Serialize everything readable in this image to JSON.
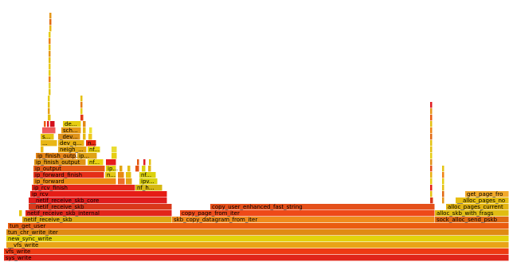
{
  "chart_data": {
    "type": "flamegraph",
    "x_range": [
      0,
      639
    ],
    "frames": [
      {
        "label": "sys_write",
        "x": 5,
        "w": 634,
        "depth": 0,
        "color": "#e0261a"
      },
      {
        "label": "vfs_write",
        "x": 5,
        "w": 634,
        "depth": 1,
        "color": "#ee3a12"
      },
      {
        "label": "__vfs_write",
        "x": 8,
        "w": 631,
        "depth": 2,
        "color": "#e9a417"
      },
      {
        "label": "new_sync_write",
        "x": 8,
        "w": 631,
        "depth": 3,
        "color": "#e3d10c"
      },
      {
        "label": "tun_chr_write_iter",
        "x": 8,
        "w": 631,
        "depth": 4,
        "color": "#e08a14"
      },
      {
        "label": "tun_get_user",
        "x": 10,
        "w": 629,
        "depth": 5,
        "color": "#ea5c10"
      },
      {
        "label": "netif_receive_skb",
        "x": 28,
        "w": 188,
        "depth": 6,
        "color": "#dea713"
      },
      {
        "label": "skb_copy_datagram_from_iter",
        "x": 216,
        "w": 330,
        "depth": 6,
        "color": "#ef8b1c"
      },
      {
        "label": "sock_alloc_send_pskb",
        "x": 546,
        "w": 93,
        "depth": 6,
        "color": "#e06a14"
      },
      {
        "label": "",
        "x": 24,
        "w": 4,
        "depth": 7,
        "color": "#e5c411"
      },
      {
        "label": "netif_receive_skb_internal",
        "x": 32,
        "w": 184,
        "depth": 7,
        "color": "#e2261a"
      },
      {
        "label": "copy_page_from_iter",
        "x": 226,
        "w": 320,
        "depth": 7,
        "color": "#ee4a18"
      },
      {
        "label": "alloc_skb_with_frags",
        "x": 546,
        "w": 93,
        "depth": 7,
        "color": "#e0bc12"
      },
      {
        "label": "__netif_receive_skb",
        "x": 36,
        "w": 180,
        "depth": 8,
        "color": "#d9381a"
      },
      {
        "label": "copy_user_enhanced_fast_string",
        "x": 264,
        "w": 282,
        "depth": 8,
        "color": "#e5501a"
      },
      {
        "label": "alloc_pages_current",
        "x": 560,
        "w": 79,
        "depth": 8,
        "color": "#e2b312"
      },
      {
        "label": "__netif_receive_skb_core",
        "x": 36,
        "w": 174,
        "depth": 9,
        "color": "#e01c1c"
      },
      {
        "label": "__alloc_pages_no",
        "x": 572,
        "w": 67,
        "depth": 9,
        "color": "#e6bd12"
      },
      {
        "label": "ip_rcv",
        "x": 38,
        "w": 172,
        "depth": 10,
        "color": "#e61d16"
      },
      {
        "label": "get_page_fro",
        "x": 584,
        "w": 55,
        "depth": 10,
        "color": "#f2a92a"
      },
      {
        "label": "ip_rcv_finish",
        "x": 40,
        "w": 130,
        "depth": 11,
        "color": "#e5261b"
      },
      {
        "label": "nf_h...",
        "x": 170,
        "w": 34,
        "depth": 11,
        "color": "#d6b813"
      },
      {
        "label": "ip_forward",
        "x": 42,
        "w": 104,
        "depth": 12,
        "color": "#ef8a12"
      },
      {
        "label": "",
        "x": 148,
        "w": 9,
        "depth": 12,
        "color": "#ee6e28"
      },
      {
        "label": "",
        "x": 158,
        "w": 8,
        "depth": 12,
        "color": "#e69c16"
      },
      {
        "label": "ipv...",
        "x": 175,
        "w": 23,
        "depth": 12,
        "color": "#dbd20f"
      },
      {
        "label": "ip_forward_finish",
        "x": 42,
        "w": 89,
        "depth": 13,
        "color": "#e52e18"
      },
      {
        "label": "n...",
        "x": 132,
        "w": 14,
        "depth": 13,
        "color": "#e4c815"
      },
      {
        "label": "",
        "x": 148,
        "w": 8,
        "depth": 13,
        "color": "#e88a14"
      },
      {
        "label": "",
        "x": 158,
        "w": 7,
        "depth": 13,
        "color": "#e5c012"
      },
      {
        "label": "nf...",
        "x": 175,
        "w": 21,
        "depth": 13,
        "color": "#dcd20d"
      },
      {
        "label": "ip_output",
        "x": 42,
        "w": 90,
        "depth": 14,
        "color": "#e55a15"
      },
      {
        "label": "ip...",
        "x": 133,
        "w": 13,
        "depth": 14,
        "color": "#dfd40e"
      },
      {
        "label": "",
        "x": 150,
        "w": 4,
        "depth": 14,
        "color": "#e3a413"
      },
      {
        "label": "",
        "x": 160,
        "w": 4,
        "depth": 14,
        "color": "#e6be14"
      },
      {
        "label": "",
        "x": 170,
        "w": 5,
        "depth": 14,
        "color": "#e55515"
      },
      {
        "label": "",
        "x": 178,
        "w": 5,
        "depth": 14,
        "color": "#dcd20f"
      },
      {
        "label": "",
        "x": 186,
        "w": 4,
        "depth": 14,
        "color": "#e1b512"
      },
      {
        "label": "ip_finish_output",
        "x": 43,
        "w": 65,
        "depth": 15,
        "color": "#e09414"
      },
      {
        "label": "nf...",
        "x": 110,
        "w": 20,
        "depth": 15,
        "color": "#ead30f"
      },
      {
        "label": "",
        "x": 133,
        "w": 13,
        "depth": 15,
        "color": "#e61c1c"
      },
      {
        "label": "",
        "x": 172,
        "w": 3,
        "depth": 15,
        "color": "#e65a14"
      },
      {
        "label": "",
        "x": 180,
        "w": 3,
        "depth": 15,
        "color": "#e01c22"
      },
      {
        "label": "",
        "x": 187,
        "w": 3,
        "depth": 15,
        "color": "#e4c110"
      },
      {
        "label": "ip_finish_outp...",
        "x": 45,
        "w": 51,
        "depth": 16,
        "color": "#e58315"
      },
      {
        "label": "ip...",
        "x": 97,
        "w": 25,
        "depth": 16,
        "color": "#dfa316"
      },
      {
        "label": "",
        "x": 140,
        "w": 7,
        "depth": 16,
        "color": "#e6ce13"
      },
      {
        "label": "",
        "x": 51,
        "w": 4,
        "depth": 17,
        "color": "#e8b816"
      },
      {
        "label": "neigh_...",
        "x": 73,
        "w": 36,
        "depth": 17,
        "color": "#e5a713"
      },
      {
        "label": "nf...",
        "x": 110,
        "w": 16,
        "depth": 17,
        "color": "#ead30f"
      },
      {
        "label": "",
        "x": 140,
        "w": 7,
        "depth": 17,
        "color": "#e9dc33"
      },
      {
        "label": "...",
        "x": 51,
        "w": 21,
        "depth": 18,
        "color": "#e9b616"
      },
      {
        "label": "dev_q...",
        "x": 73,
        "w": 33,
        "depth": 18,
        "color": "#e8b011"
      },
      {
        "label": "n...",
        "x": 108,
        "w": 13,
        "depth": 18,
        "color": "#e6290f"
      },
      {
        "label": "s...",
        "x": 51,
        "w": 17,
        "depth": 19,
        "color": "#e5c212"
      },
      {
        "label": "_dev...",
        "x": 73,
        "w": 28,
        "depth": 19,
        "color": "#e0921a"
      },
      {
        "label": "",
        "x": 104,
        "w": 4,
        "depth": 19,
        "color": "#e6b713"
      },
      {
        "label": "",
        "x": 111,
        "w": 5,
        "depth": 19,
        "color": "#eec71c"
      },
      {
        "label": "",
        "x": 53,
        "w": 17,
        "depth": 20,
        "color": "#f05a5a"
      },
      {
        "label": "sch...",
        "x": 77,
        "w": 25,
        "depth": 20,
        "color": "#e59816"
      },
      {
        "label": "",
        "x": 104,
        "w": 4,
        "depth": 20,
        "color": "#e6b713"
      },
      {
        "label": "",
        "x": 112,
        "w": 4,
        "depth": 20,
        "color": "#eee233"
      },
      {
        "label": "",
        "x": 55,
        "w": 3,
        "depth": 21,
        "color": "#ee5a14"
      },
      {
        "label": "",
        "x": 59,
        "w": 3,
        "depth": 21,
        "color": "#e01c22"
      },
      {
        "label": "",
        "x": 63,
        "w": 6,
        "depth": 21,
        "color": "#d40f1c"
      },
      {
        "label": "de...",
        "x": 79,
        "w": 23,
        "depth": 21,
        "color": "#e6cd11"
      },
      {
        "label": "",
        "x": 104,
        "w": 4,
        "depth": 21,
        "color": "#e38a14"
      },
      {
        "label": "",
        "x": 60,
        "w": 4,
        "depth": 22,
        "color": "#e4c011"
      },
      {
        "label": "",
        "x": 101,
        "w": 4,
        "depth": 22,
        "color": "#e33a16"
      },
      {
        "label": "",
        "x": 101,
        "w": 3,
        "depth": 23,
        "color": "#e6ce15"
      },
      {
        "label": "",
        "x": 101,
        "w": 3,
        "depth": 24,
        "color": "#e57d14"
      },
      {
        "label": "",
        "x": 101,
        "w": 3,
        "depth": 25,
        "color": "#e5c012"
      },
      {
        "label": "",
        "x": 60,
        "w": 3,
        "depth": 23,
        "color": "#e7a016"
      },
      {
        "label": "",
        "x": 60,
        "w": 3,
        "depth": 24,
        "color": "#e4c011"
      },
      {
        "label": "",
        "x": 60,
        "w": 3,
        "depth": 25,
        "color": "#e6ce15"
      },
      {
        "label": "",
        "x": 61,
        "w": 3,
        "depth": 26,
        "color": "#e4c414"
      },
      {
        "label": "",
        "x": 61,
        "w": 3,
        "depth": 27,
        "color": "#e6d333"
      },
      {
        "label": "",
        "x": 61,
        "w": 3,
        "depth": 28,
        "color": "#ee8316"
      },
      {
        "label": "",
        "x": 61,
        "w": 3,
        "depth": 29,
        "color": "#e6ce15"
      },
      {
        "label": "",
        "x": 61,
        "w": 3,
        "depth": 30,
        "color": "#eac81c"
      },
      {
        "label": "",
        "x": 61,
        "w": 3,
        "depth": 31,
        "color": "#e4c011"
      },
      {
        "label": "",
        "x": 61,
        "w": 3,
        "depth": 32,
        "color": "#e5971a"
      },
      {
        "label": "",
        "x": 61,
        "w": 3,
        "depth": 33,
        "color": "#e4c414"
      },
      {
        "label": "",
        "x": 61,
        "w": 3,
        "depth": 34,
        "color": "#ee8316"
      },
      {
        "label": "",
        "x": 61,
        "w": 3,
        "depth": 35,
        "color": "#e6ce15"
      },
      {
        "label": "",
        "x": 62,
        "w": 3,
        "depth": 36,
        "color": "#e8b816"
      },
      {
        "label": "",
        "x": 62,
        "w": 3,
        "depth": 37,
        "color": "#e06a14"
      },
      {
        "label": "",
        "x": 62,
        "w": 3,
        "depth": 38,
        "color": "#e5971a"
      },
      {
        "label": "",
        "x": 540,
        "w": 4,
        "depth": 9,
        "color": "#d9381a"
      },
      {
        "label": "",
        "x": 540,
        "w": 3,
        "depth": 10,
        "color": "#e5c212"
      },
      {
        "label": "",
        "x": 540,
        "w": 3,
        "depth": 11,
        "color": "#e61d16"
      },
      {
        "label": "",
        "x": 540,
        "w": 3,
        "depth": 12,
        "color": "#e6ce13"
      },
      {
        "label": "",
        "x": 540,
        "w": 3,
        "depth": 13,
        "color": "#e8b011"
      },
      {
        "label": "",
        "x": 540,
        "w": 3,
        "depth": 14,
        "color": "#e5501a"
      },
      {
        "label": "",
        "x": 540,
        "w": 3,
        "depth": 15,
        "color": "#e0921a"
      },
      {
        "label": "",
        "x": 540,
        "w": 3,
        "depth": 16,
        "color": "#e6ce15"
      },
      {
        "label": "",
        "x": 540,
        "w": 3,
        "depth": 17,
        "color": "#e5c012"
      },
      {
        "label": "",
        "x": 540,
        "w": 3,
        "depth": 18,
        "color": "#e4c414"
      },
      {
        "label": "",
        "x": 540,
        "w": 3,
        "depth": 19,
        "color": "#e06a14"
      },
      {
        "label": "",
        "x": 540,
        "w": 3,
        "depth": 20,
        "color": "#ee8316"
      },
      {
        "label": "",
        "x": 540,
        "w": 3,
        "depth": 21,
        "color": "#e4c011"
      },
      {
        "label": "",
        "x": 540,
        "w": 3,
        "depth": 22,
        "color": "#ea5c10"
      },
      {
        "label": "",
        "x": 540,
        "w": 3,
        "depth": 23,
        "color": "#e5971a"
      },
      {
        "label": "",
        "x": 540,
        "w": 3,
        "depth": 24,
        "color": "#e01c22"
      },
      {
        "label": "",
        "x": 555,
        "w": 3,
        "depth": 9,
        "color": "#e5971a"
      },
      {
        "label": "",
        "x": 555,
        "w": 3,
        "depth": 10,
        "color": "#e06a14"
      },
      {
        "label": "",
        "x": 555,
        "w": 3,
        "depth": 11,
        "color": "#e5c012"
      },
      {
        "label": "",
        "x": 555,
        "w": 3,
        "depth": 12,
        "color": "#e6ce15"
      },
      {
        "label": "",
        "x": 555,
        "w": 3,
        "depth": 13,
        "color": "#ee8316"
      },
      {
        "label": "",
        "x": 555,
        "w": 3,
        "depth": 14,
        "color": "#e4c414"
      }
    ]
  }
}
